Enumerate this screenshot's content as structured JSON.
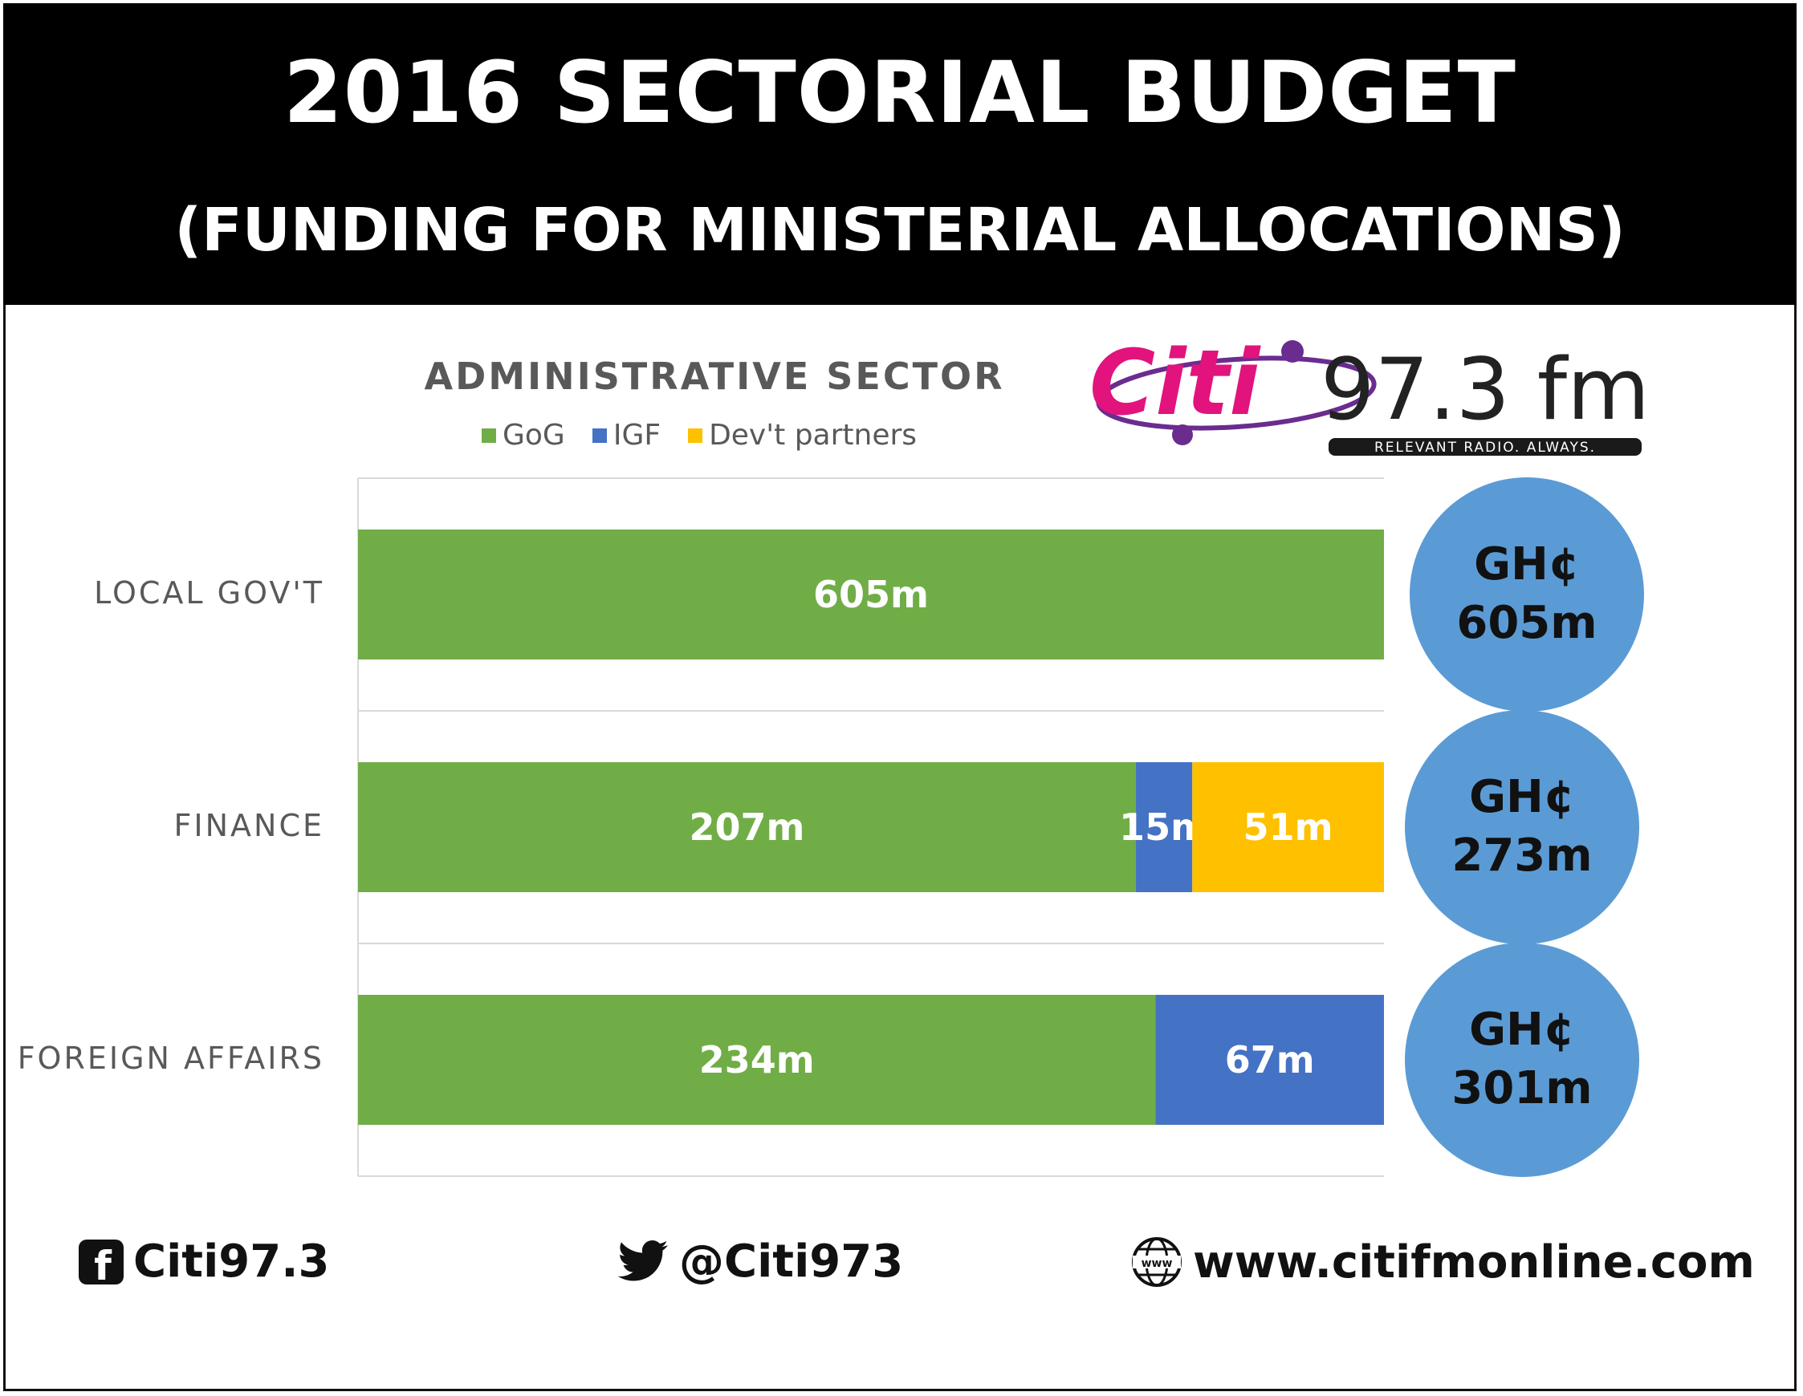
{
  "header": {
    "title": "2016 SECTORIAL BUDGET",
    "subtitle": "(FUNDING FOR MINISTERIAL ALLOCATIONS)"
  },
  "logo": {
    "brand": "Citi",
    "frequency": "97.3 fm",
    "tagline": "RELEVANT RADIO. ALWAYS."
  },
  "chart_data": {
    "type": "bar",
    "orientation": "horizontal",
    "stacked": true,
    "title": "ADMINISTRATIVE SECTOR",
    "categories": [
      "LOCAL GOV'T",
      "FINANCE",
      "FOREIGN AFFAIRS"
    ],
    "series": [
      {
        "name": "GoG",
        "values": [
          605,
          207,
          234
        ],
        "labels": [
          "605m",
          "207m",
          "234m"
        ],
        "color": "#70ad47"
      },
      {
        "name": "IGF",
        "values": [
          0,
          15,
          67
        ],
        "labels": [
          "",
          "15m",
          "67m"
        ],
        "color": "#4472c4"
      },
      {
        "name": "Dev't partners",
        "values": [
          0,
          51,
          0
        ],
        "labels": [
          "",
          "51m",
          ""
        ],
        "color": "#ffc000"
      }
    ],
    "percent_stacked": true,
    "legend_position": "top",
    "grid": true,
    "totals": [
      {
        "currency": "GH¢",
        "amount": "605m"
      },
      {
        "currency": "GH¢",
        "amount": "273m"
      },
      {
        "currency": "GH¢",
        "amount": "301m"
      }
    ],
    "bubble_color": "#5b9bd5"
  },
  "footer": {
    "facebook": "Citi97.3",
    "twitter": "@Citi973",
    "website": "www.citifmonline.com",
    "facebook_icon": "facebook-icon",
    "twitter_icon": "twitter-icon",
    "globe_icon": "globe-icon"
  }
}
